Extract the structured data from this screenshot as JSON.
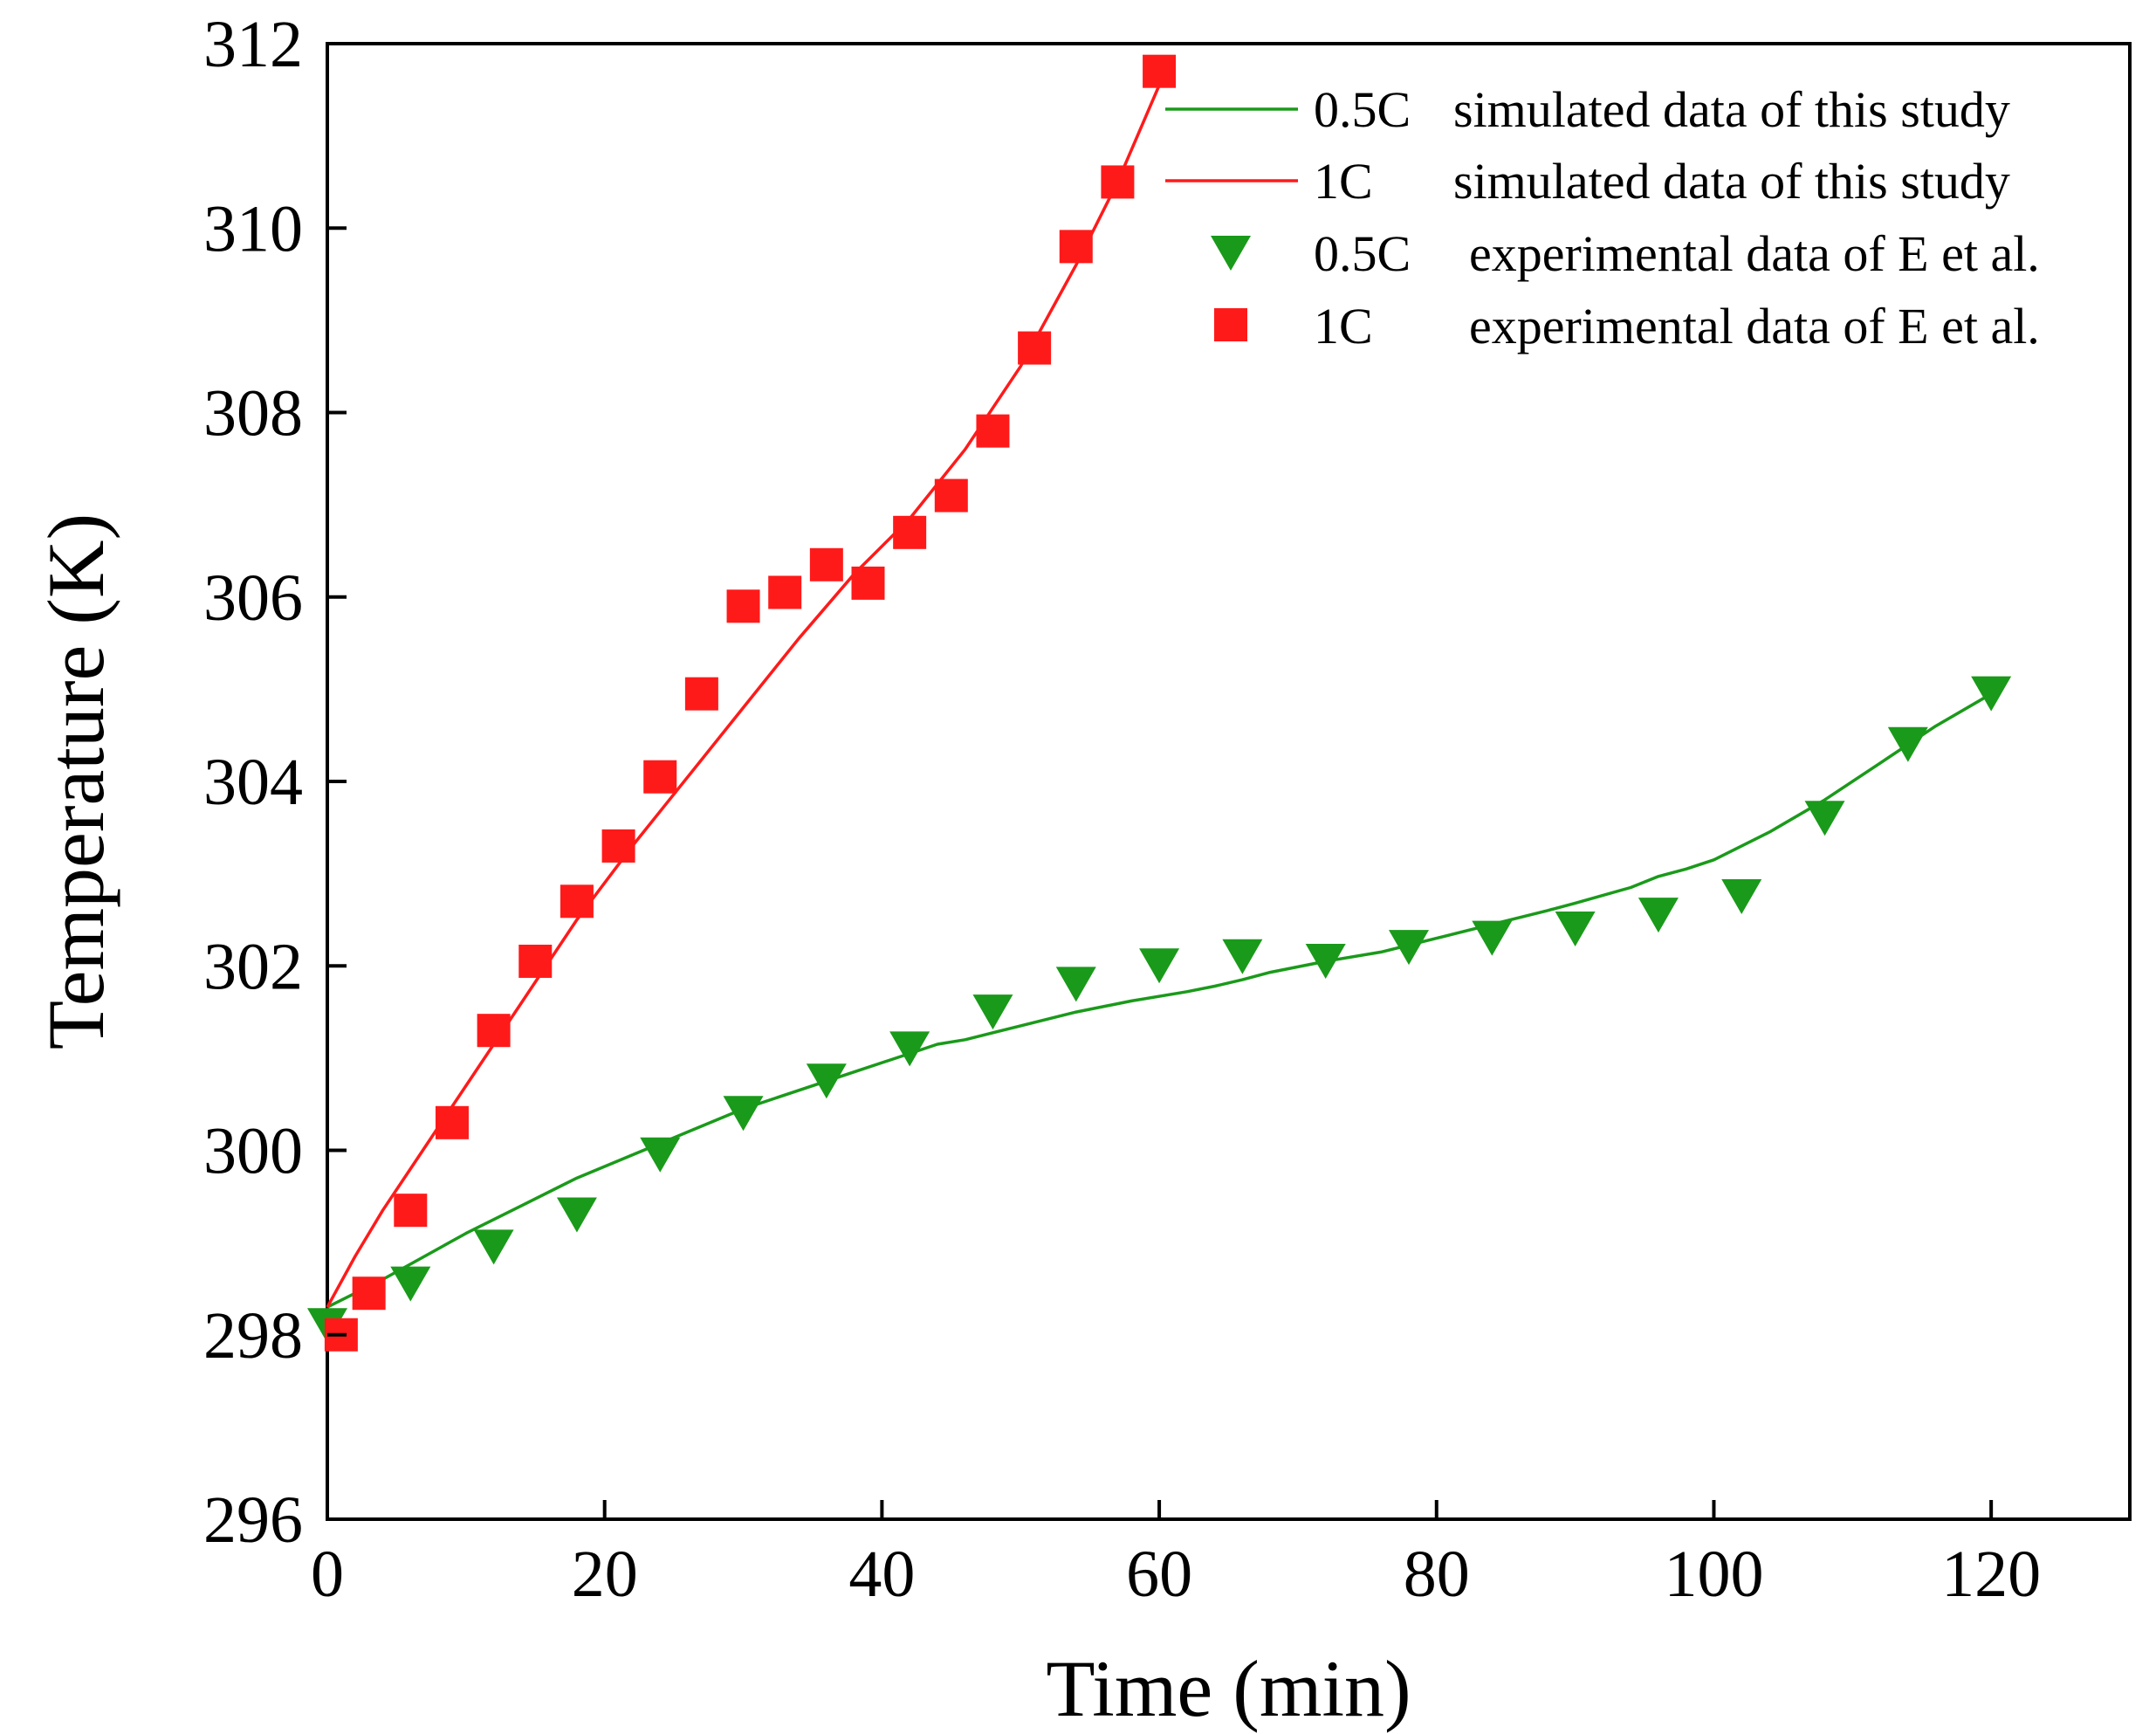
{
  "chart_data": {
    "type": "line",
    "title": "",
    "xlabel": "Time (min)",
    "ylabel": "Temperature (K)",
    "xlim": [
      0,
      130
    ],
    "ylim": [
      296,
      312
    ],
    "xticks": [
      0,
      20,
      40,
      60,
      80,
      100,
      120
    ],
    "yticks": [
      296,
      298,
      300,
      302,
      304,
      306,
      308,
      310,
      312
    ],
    "grid": false,
    "legend_position": "top-right",
    "colors": {
      "green": "#1a9a1a",
      "red": "#ff1a1a"
    },
    "series": [
      {
        "name": "0.5C simulated",
        "kind": "line",
        "color": "#1a9a1a",
        "legend": {
          "rate": "0.5C",
          "label": "simulated data of this study"
        },
        "x": [
          0,
          2,
          4,
          7,
          10,
          14,
          18,
          22,
          26,
          30,
          34,
          38,
          42,
          44,
          46,
          50,
          54,
          58,
          62,
          64,
          66,
          68,
          72,
          76,
          80,
          84,
          88,
          90,
          94,
          96,
          98,
          100,
          104,
          108,
          112,
          116,
          120
        ],
        "y": [
          298.3,
          298.45,
          298.6,
          298.85,
          299.1,
          299.4,
          299.7,
          299.95,
          300.2,
          300.45,
          300.65,
          300.85,
          301.05,
          301.15,
          301.2,
          301.35,
          301.5,
          301.62,
          301.72,
          301.78,
          301.85,
          301.93,
          302.05,
          302.15,
          302.3,
          302.45,
          302.6,
          302.68,
          302.85,
          302.97,
          303.05,
          303.15,
          303.45,
          303.8,
          304.2,
          304.6,
          304.95
        ]
      },
      {
        "name": "1C simulated",
        "kind": "line",
        "color": "#ff1a1a",
        "legend": {
          "rate": "1C",
          "label": "simulated data of this study"
        },
        "x": [
          0,
          2,
          4,
          6,
          10,
          14,
          18,
          22,
          26,
          30,
          34,
          38,
          42,
          46,
          50,
          54,
          57,
          60
        ],
        "y": [
          298.3,
          298.85,
          299.35,
          299.8,
          300.7,
          301.6,
          302.5,
          303.3,
          304.05,
          304.8,
          305.55,
          306.25,
          306.85,
          307.6,
          308.5,
          309.6,
          310.5,
          311.55
        ]
      },
      {
        "name": "0.5C experimental",
        "kind": "marker",
        "marker": "triangle-down",
        "color": "#1a9a1a",
        "legend": {
          "rate": "0.5C",
          "label": "experimental data of E et al."
        },
        "x": [
          0,
          6,
          12,
          18,
          24,
          30,
          36,
          42,
          48,
          54,
          60,
          66,
          72,
          78,
          84,
          90,
          96,
          102,
          108,
          114,
          120
        ],
        "y": [
          298.1,
          298.55,
          298.95,
          299.3,
          299.95,
          300.4,
          300.75,
          301.1,
          301.5,
          301.8,
          302.0,
          302.1,
          302.05,
          302.2,
          302.3,
          302.4,
          302.55,
          302.75,
          303.6,
          304.4,
          304.95
        ]
      },
      {
        "name": "1C experimental",
        "kind": "marker",
        "marker": "square",
        "color": "#ff1a1a",
        "legend": {
          "rate": "1C",
          "label": "experimental data of E et al."
        },
        "x": [
          1,
          3,
          6,
          9,
          12,
          15,
          18,
          21,
          24,
          27,
          30,
          33,
          36,
          39,
          42,
          45,
          48,
          51,
          54,
          57,
          60
        ],
        "y": [
          298.0,
          298.45,
          299.35,
          300.3,
          301.3,
          302.05,
          302.7,
          303.3,
          304.05,
          304.95,
          305.9,
          306.05,
          306.35,
          306.15,
          306.7,
          307.1,
          307.8,
          308.7,
          309.8,
          310.5,
          311.7
        ]
      }
    ]
  }
}
